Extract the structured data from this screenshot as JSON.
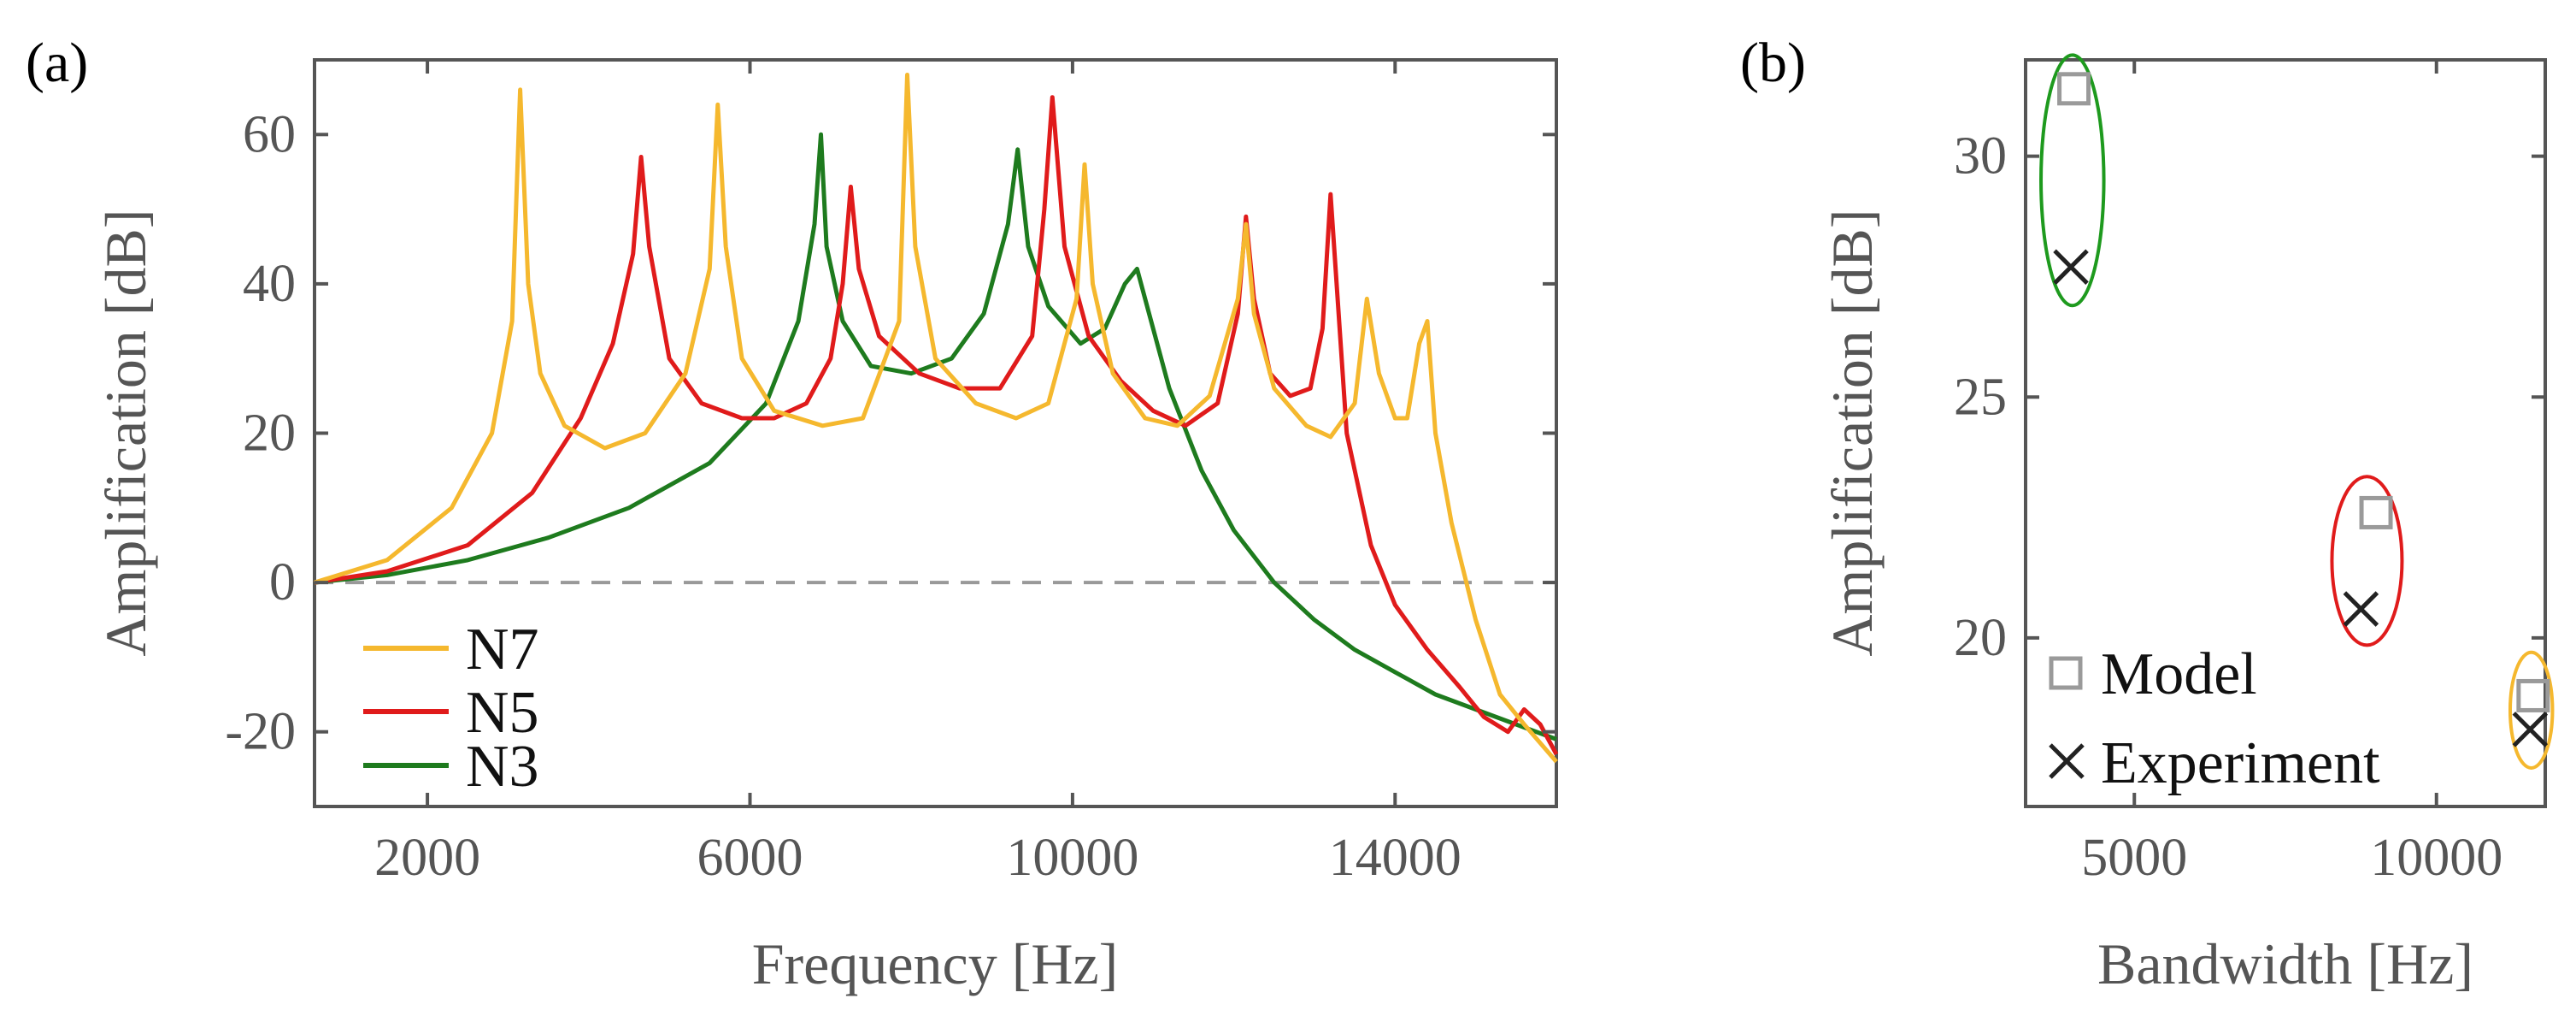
{
  "chart_data": [
    {
      "panel_label": "(a)",
      "type": "line",
      "xlabel": "Frequency [Hz]",
      "ylabel": "Amplification [dB]",
      "xlim": [
        600,
        16000
      ],
      "ylim": [
        -30,
        70
      ],
      "xticks": [
        2000,
        6000,
        10000,
        14000
      ],
      "yticks": [
        -20,
        0,
        20,
        40,
        60
      ],
      "xtick_labels": [
        "2000",
        "6000",
        "10000",
        "14000"
      ],
      "ytick_labels": [
        "-20",
        "0",
        "20",
        "40",
        "60"
      ],
      "reference_line": {
        "y": 0,
        "style": "dashed",
        "color": "#999999"
      },
      "legend": {
        "position": "bottom-left",
        "entries": [
          "N7",
          "N5",
          "N3"
        ]
      },
      "series": [
        {
          "name": "N7",
          "color": "#F5B82E",
          "x": [
            600,
            1500,
            2300,
            2800,
            3050,
            3150,
            3250,
            3400,
            3700,
            4200,
            4700,
            5200,
            5500,
            5600,
            5700,
            5900,
            6300,
            6900,
            7400,
            7850,
            7950,
            8050,
            8300,
            8800,
            9300,
            9700,
            10050,
            10150,
            10250,
            10500,
            10900,
            11300,
            11700,
            12050,
            12150,
            12250,
            12500,
            12900,
            13200,
            13500,
            13650,
            13800,
            14000,
            14150,
            14300,
            14400,
            14500,
            14700,
            15000,
            15300,
            15600,
            16000
          ],
          "y": [
            0,
            3,
            10,
            20,
            35,
            66,
            40,
            28,
            21,
            18,
            20,
            28,
            42,
            64,
            45,
            30,
            23,
            21,
            22,
            35,
            68,
            45,
            30,
            24,
            22,
            24,
            38,
            56,
            40,
            28,
            22,
            21,
            25,
            38,
            48,
            36,
            26,
            21,
            19.5,
            24,
            38,
            28,
            22,
            22,
            32,
            35,
            20,
            8,
            -5,
            -15,
            -19,
            -24
          ]
        },
        {
          "name": "N5",
          "color": "#E01B1B",
          "x": [
            600,
            1500,
            2500,
            3300,
            3900,
            4300,
            4550,
            4650,
            4750,
            5000,
            5400,
            5900,
            6300,
            6700,
            7000,
            7150,
            7250,
            7350,
            7600,
            8100,
            8600,
            9100,
            9500,
            9650,
            9750,
            9900,
            10200,
            10600,
            11000,
            11400,
            11800,
            12050,
            12150,
            12250,
            12450,
            12700,
            12950,
            13100,
            13200,
            13400,
            13700,
            14000,
            14400,
            14800,
            15100,
            15400,
            15600,
            15800,
            16000
          ],
          "y": [
            0,
            1.5,
            5,
            12,
            22,
            32,
            44,
            57,
            45,
            30,
            24,
            22,
            22,
            24,
            30,
            40,
            53,
            42,
            33,
            28,
            26,
            26,
            33,
            50,
            65,
            45,
            33,
            27,
            23,
            21,
            24,
            36,
            49,
            38,
            28,
            25,
            26,
            34,
            52,
            20,
            5,
            -3,
            -9,
            -14,
            -18,
            -20,
            -17,
            -19,
            -23
          ]
        },
        {
          "name": "N3",
          "color": "#1E7B1E",
          "x": [
            600,
            1500,
            2500,
            3500,
            4500,
            5500,
            6200,
            6600,
            6800,
            6880,
            6950,
            7150,
            7500,
            8000,
            8500,
            8900,
            9200,
            9320,
            9450,
            9700,
            10100,
            10400,
            10650,
            10800,
            10950,
            11200,
            11600,
            12000,
            12500,
            13000,
            13500,
            14000,
            14500,
            15000,
            15500,
            16000
          ],
          "y": [
            0,
            1,
            3,
            6,
            10,
            16,
            24,
            35,
            48,
            60,
            45,
            35,
            29,
            28,
            30,
            36,
            48,
            58,
            45,
            37,
            32,
            34,
            40,
            42,
            36,
            26,
            15,
            7,
            0,
            -5,
            -9,
            -12,
            -15,
            -17,
            -19,
            -21
          ]
        }
      ]
    },
    {
      "panel_label": "(b)",
      "type": "scatter",
      "xlabel": "Bandwidth [Hz]",
      "ylabel": "Amplification [dB]",
      "xlim": [
        3200,
        11800
      ],
      "ylim": [
        16.5,
        32
      ],
      "xticks": [
        5000,
        10000
      ],
      "yticks": [
        20,
        25,
        30
      ],
      "xtick_labels": [
        "5000",
        "10000"
      ],
      "ytick_labels": [
        "20",
        "25",
        "30"
      ],
      "legend": {
        "position": "bottom-left",
        "entries": [
          "Model",
          "Experiment"
        ]
      },
      "series": [
        {
          "name": "Model",
          "marker": "square",
          "color": "#9A9A9A",
          "x": [
            4000,
            9000,
            11600
          ],
          "y": [
            31.4,
            22.6,
            18.8
          ]
        },
        {
          "name": "Experiment",
          "marker": "x",
          "color": "#222222",
          "x": [
            3950,
            8750,
            11550
          ],
          "y": [
            27.7,
            20.6,
            18.1
          ]
        }
      ],
      "groups": [
        {
          "name": "N3",
          "color": "#1E9A1E",
          "cx": 3975,
          "cy": 29.5,
          "rx": 520,
          "ry": 2.6
        },
        {
          "name": "N5",
          "color": "#E01B1B",
          "cx": 8850,
          "cy": 21.6,
          "rx": 580,
          "ry": 1.75
        },
        {
          "name": "N7",
          "color": "#F5B82E",
          "cx": 11570,
          "cy": 18.5,
          "rx": 350,
          "ry": 1.2
        }
      ]
    }
  ]
}
